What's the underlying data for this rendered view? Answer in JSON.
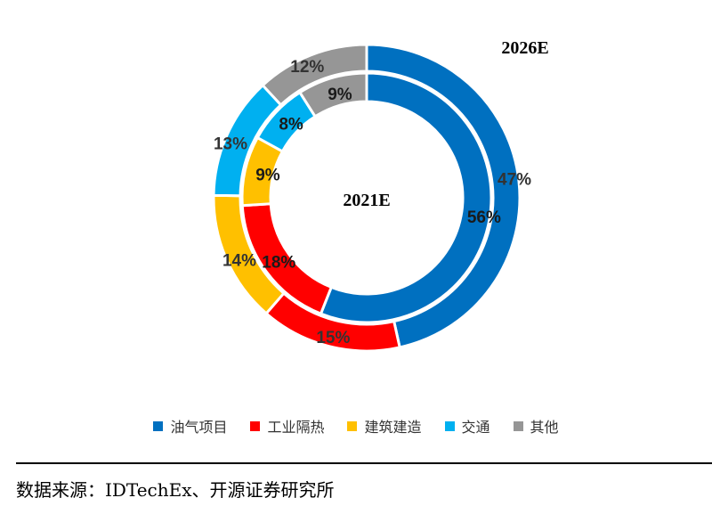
{
  "chart_data": {
    "type": "pie",
    "subtype": "nested-donut",
    "categories": [
      "油气项目",
      "工业隔热",
      "建筑建造",
      "交通",
      "其他"
    ],
    "colors": [
      "#0070C0",
      "#FF0000",
      "#FFC000",
      "#00B0F0",
      "#969696"
    ],
    "series": [
      {
        "name": "2026E",
        "ring": "outer",
        "values": [
          47,
          15,
          14,
          13,
          12
        ],
        "labels": [
          "47%",
          "15%",
          "14%",
          "13%",
          "12%"
        ]
      },
      {
        "name": "2021E",
        "ring": "inner",
        "values": [
          56,
          18,
          9,
          8,
          9
        ],
        "labels": [
          "56%",
          "18%",
          "9%",
          "8%",
          "9%"
        ]
      }
    ],
    "legend_position": "bottom"
  },
  "source": "数据来源：IDTechEx、开源证券研究所"
}
